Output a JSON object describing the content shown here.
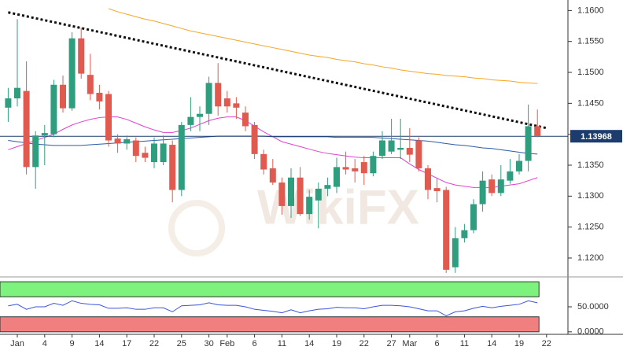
{
  "chart_data": [
    {
      "type": "candlestick",
      "watermark": "WikiFX",
      "categories": [
        null,
        "Jan",
        null,
        null,
        "4",
        null,
        null,
        "9",
        null,
        null,
        "14",
        null,
        null,
        "17",
        null,
        null,
        "22",
        null,
        null,
        "25",
        null,
        null,
        "30",
        null,
        "Feb",
        null,
        null,
        "6",
        null,
        null,
        "11",
        null,
        null,
        "14",
        null,
        null,
        "19",
        null,
        null,
        "22",
        null,
        null,
        "27",
        null,
        "Mar",
        null,
        null,
        "6",
        null,
        null,
        "11",
        null,
        null,
        "14",
        null,
        null,
        "19",
        null,
        null,
        "22"
      ],
      "open": [
        1.1443,
        1.1458,
        1.147,
        1.1347,
        1.1398,
        1.14,
        1.148,
        1.1442,
        1.1555,
        1.1496,
        1.1467,
        1.1465,
        1.1393,
        1.1385,
        1.139,
        1.137,
        1.1355,
        1.1355,
        1.1383,
        1.131,
        1.1415,
        1.1428,
        1.1433,
        1.1483,
        1.1458,
        1.145,
        1.1435,
        1.1415,
        1.1368,
        1.1345,
        1.1322,
        1.1284,
        1.133,
        1.1271,
        1.1293,
        1.1312,
        1.1315,
        1.1347,
        1.1345,
        1.1355,
        1.1337,
        1.1365,
        1.1372,
        1.1375,
        1.1378,
        1.139,
        1.1345,
        1.1313,
        1.131,
        1.1185,
        1.1232,
        1.1245,
        1.1287,
        1.1327,
        1.1305,
        1.1325,
        1.134,
        1.1357,
        1.1413,
        null
      ],
      "high": [
        1.1475,
        1.1586,
        1.1518,
        1.1405,
        1.1415,
        1.1488,
        1.1495,
        1.1565,
        1.1572,
        1.153,
        1.148,
        1.147,
        1.14,
        1.1398,
        1.1395,
        1.138,
        1.1395,
        1.1398,
        1.139,
        1.142,
        1.146,
        1.1445,
        1.1493,
        1.1515,
        1.147,
        1.146,
        1.1445,
        1.142,
        1.1375,
        1.136,
        1.133,
        1.1345,
        1.1347,
        1.131,
        1.1322,
        1.133,
        1.1362,
        1.1372,
        1.136,
        1.1365,
        1.1372,
        1.1405,
        1.1425,
        1.1425,
        1.141,
        1.1395,
        1.135,
        1.133,
        1.1315,
        1.125,
        1.1255,
        1.1295,
        1.134,
        1.1335,
        1.135,
        1.136,
        1.1368,
        1.1448,
        1.144,
        null
      ],
      "low": [
        1.142,
        1.1445,
        1.1335,
        1.1312,
        1.135,
        1.1395,
        1.1435,
        1.1438,
        1.149,
        1.1455,
        1.144,
        1.138,
        1.137,
        1.1375,
        1.1355,
        1.1355,
        1.1345,
        1.135,
        1.129,
        1.13,
        1.1405,
        1.1405,
        1.1415,
        1.143,
        1.1435,
        1.1425,
        1.1405,
        1.136,
        1.1335,
        1.1318,
        1.127,
        1.1265,
        1.1268,
        1.1262,
        1.1248,
        1.13,
        1.1305,
        1.1335,
        1.1322,
        1.1318,
        1.1332,
        1.136,
        1.1368,
        1.136,
        1.1355,
        1.134,
        1.1295,
        1.129,
        1.1176,
        1.1176,
        1.1225,
        1.124,
        1.1275,
        1.13,
        1.13,
        1.132,
        1.1335,
        1.134,
        1.1395,
        null
      ],
      "close": [
        1.1458,
        1.1475,
        1.1347,
        1.1398,
        1.1402,
        1.148,
        1.1442,
        1.1555,
        1.1498,
        1.1465,
        1.1453,
        1.139,
        1.1385,
        1.1392,
        1.1365,
        1.1362,
        1.1385,
        1.1385,
        1.131,
        1.1415,
        1.1428,
        1.1433,
        1.1483,
        1.1445,
        1.1445,
        1.1443,
        1.1413,
        1.1368,
        1.1343,
        1.1322,
        1.1284,
        1.133,
        1.1271,
        1.1299,
        1.1312,
        1.1318,
        1.1347,
        1.1343,
        1.134,
        1.1337,
        1.1365,
        1.139,
        1.139,
        1.1378,
        1.1367,
        1.1345,
        1.131,
        1.1308,
        1.1181,
        1.1232,
        1.1245,
        1.1287,
        1.1325,
        1.1305,
        1.1327,
        1.134,
        1.1357,
        1.1413,
        1.1397,
        null
      ],
      "up_color": "#2f9e7f",
      "down_color": "#e05a4f",
      "series": [
        {
          "color": "#f5a623",
          "values": [
            null,
            null,
            null,
            null,
            null,
            null,
            null,
            null,
            null,
            null,
            null,
            1.1603,
            1.1598,
            1.1594,
            1.159,
            1.1586,
            1.1583,
            1.1579,
            1.1575,
            1.1571,
            1.1567,
            1.1564,
            1.1561,
            1.1558,
            1.1555,
            1.1552,
            1.1549,
            1.1546,
            1.1543,
            1.154,
            1.1537,
            1.1534,
            1.1531,
            1.1528,
            1.1526,
            1.1524,
            1.1521,
            1.1519,
            1.1517,
            1.1514,
            1.1512,
            1.1509,
            1.1507,
            1.1504,
            1.1502,
            1.15,
            1.1498,
            1.1497,
            1.1495,
            1.1494,
            1.1493,
            1.1491,
            1.149,
            1.1488,
            1.1487,
            1.1486,
            1.1484,
            1.1483,
            1.1482,
            null
          ]
        },
        {
          "color": "#2b5ba8",
          "values": [
            1.139,
            1.1388,
            1.1386,
            1.1384,
            1.1383,
            1.1382,
            1.1382,
            1.1382,
            1.1382,
            1.1383,
            1.1384,
            1.1385,
            1.1386,
            1.1387,
            1.1388,
            1.1389,
            1.139,
            1.1391,
            1.1392,
            1.1393,
            1.1394,
            1.1395,
            1.1396,
            1.1397,
            1.1397,
            1.1397,
            1.1397,
            1.1397,
            1.1397,
            1.1396,
            1.1396,
            1.1396,
            1.1396,
            1.1396,
            1.1396,
            1.1396,
            1.1395,
            1.1395,
            1.1395,
            1.1395,
            1.1395,
            1.1394,
            1.1393,
            1.1392,
            1.1391,
            1.139,
            1.1389,
            1.1387,
            1.1385,
            1.1383,
            1.1382,
            1.138,
            1.1378,
            1.1377,
            1.1375,
            1.1373,
            1.1371,
            1.1369,
            1.1368,
            null
          ]
        },
        {
          "color": "#e040d0",
          "values": [
            1.1375,
            1.138,
            1.1385,
            1.139,
            1.1395,
            1.14,
            1.1408,
            1.1415,
            1.142,
            1.1424,
            1.1427,
            1.1428,
            1.1428,
            1.1424,
            1.1418,
            1.1412,
            1.1407,
            1.1403,
            1.1403,
            1.1406,
            1.141,
            1.1416,
            1.1422,
            1.1426,
            1.1428,
            1.1428,
            1.1422,
            1.1413,
            1.1404,
            1.1396,
            1.1388,
            1.1384,
            1.138,
            1.1376,
            1.1372,
            1.1369,
            1.1367,
            1.1365,
            1.1363,
            1.1362,
            1.1362,
            1.1362,
            1.1362,
            1.1362,
            1.1352,
            1.1343,
            1.1336,
            1.1329,
            1.1322,
            1.1318,
            1.1316,
            1.1314,
            1.1314,
            1.1314,
            1.1316,
            1.1318,
            1.132,
            1.1325,
            1.133,
            null
          ]
        }
      ],
      "trendline": {
        "start": [
          0,
          1.1597
        ],
        "end": [
          59,
          1.141
        ],
        "color": "#111"
      },
      "last_price": 1.13968,
      "last_price_color": "#1c3c6e",
      "ylim": [
        1.1172,
        1.1617
      ],
      "yticks": [
        {
          "value": 1.12,
          "label": "1.1200"
        },
        {
          "value": 1.125,
          "label": "1.1250"
        },
        {
          "value": 1.13,
          "label": "1.1300"
        },
        {
          "value": 1.135,
          "label": "1.1350"
        },
        {
          "value": 1.14,
          "label": "1.1400"
        },
        {
          "value": 1.145,
          "label": "1.1450"
        },
        {
          "value": 1.15,
          "label": "1.1500"
        },
        {
          "value": 1.155,
          "label": "1.1550"
        },
        {
          "value": 1.16,
          "label": "1.1600"
        }
      ]
    },
    {
      "type": "line",
      "color": "#3b55d9",
      "values": [
        52,
        55,
        45,
        50,
        50,
        57,
        53,
        62,
        57,
        55,
        54,
        47,
        47,
        48,
        45,
        45,
        48,
        48,
        40,
        52,
        53,
        54,
        58,
        54,
        53,
        53,
        50,
        45,
        43,
        41,
        38,
        44,
        38,
        42,
        45,
        46,
        49,
        48,
        48,
        46,
        50,
        53,
        53,
        52,
        50,
        46,
        42,
        42,
        32,
        40,
        42,
        47,
        51,
        48,
        51,
        53,
        55,
        62,
        58,
        null
      ],
      "bands": [
        {
          "from": 70,
          "to": 100,
          "color": "#7df27d"
        },
        {
          "from": 0,
          "to": 30,
          "color": "#f07f7f"
        }
      ],
      "ylim": [
        -5,
        105
      ],
      "yticks": [
        {
          "value": 0,
          "label": "0.0000"
        },
        {
          "value": 50,
          "label": "50.0000"
        }
      ]
    }
  ]
}
